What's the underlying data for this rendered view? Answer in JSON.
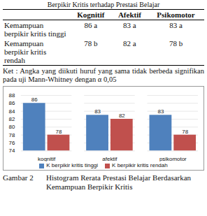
{
  "table": {
    "title": "Berpikir Kritis terhadap Prestasi Belajar",
    "header": [
      "Kognitif",
      "Afektif",
      "Psikomotor"
    ],
    "rows": [
      {
        "label": "Kemampuan berpikir kritis tinggi",
        "cells": [
          "86 a",
          "83 a",
          "83 a"
        ]
      },
      {
        "label": "Kemampuan berpikir kritis rendah",
        "cells": [
          "78 b",
          "82 a",
          "78 b"
        ]
      }
    ]
  },
  "note": "Ket : Angka yang diikuti huruf yang sama tidak berbeda signifikan pada uji Mann-Whitney dengan α 0,05",
  "chart_data": {
    "type": "bar",
    "categories": [
      "kognitif",
      "afektif",
      "psikomotor"
    ],
    "series": [
      {
        "name": "K berpikir kritis tinggi",
        "color": "#4f81bd",
        "values": [
          86,
          83,
          83
        ]
      },
      {
        "name": "K berpikir kritis rendah",
        "color": "#c0504d",
        "values": [
          78,
          82,
          78
        ]
      }
    ],
    "ylim": [
      74,
      88
    ],
    "yticks": [
      74,
      76,
      78,
      80,
      82,
      84,
      86,
      88
    ],
    "grid": true,
    "data_labels": true,
    "legend": "bottom"
  },
  "caption": {
    "label": "Gambar 2",
    "text": "Histogram Rerata Prestasi Belajar Berdasarkan Kemampuan Berpikir Kritis"
  }
}
